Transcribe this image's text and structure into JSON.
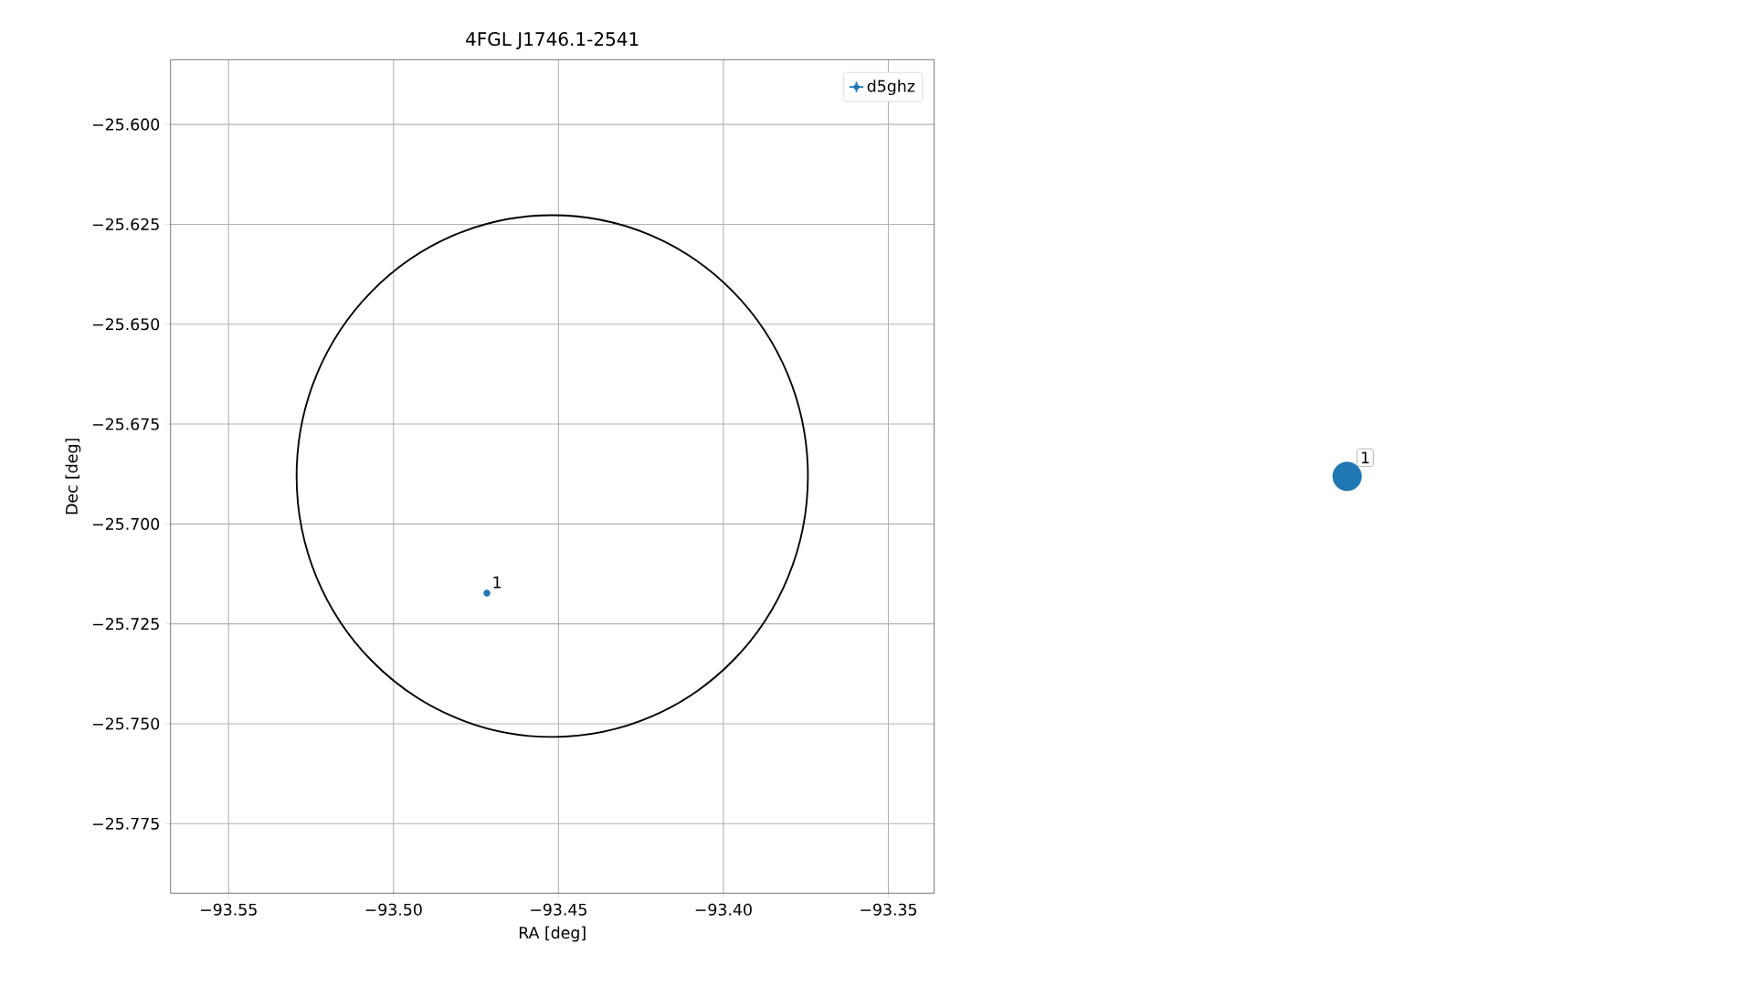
{
  "chart_data": [
    {
      "type": "scatter",
      "title": "4FGL J1746.1-2541",
      "xlabel": "RA [deg]",
      "ylabel": "Dec [deg]",
      "xlim": [
        -93.5676,
        -93.3361
      ],
      "ylim": [
        -25.7924,
        -25.5838
      ],
      "xticks": [
        {
          "value": -93.55,
          "label": "−93.55"
        },
        {
          "value": -93.5,
          "label": "−93.50"
        },
        {
          "value": -93.45,
          "label": "−93.45"
        },
        {
          "value": -93.4,
          "label": "−93.40"
        },
        {
          "value": -93.35,
          "label": "−93.35"
        }
      ],
      "yticks": [
        {
          "value": -25.775,
          "label": "−25.775"
        },
        {
          "value": -25.75,
          "label": "−25.750"
        },
        {
          "value": -25.725,
          "label": "−25.725"
        },
        {
          "value": -25.7,
          "label": "−25.700"
        },
        {
          "value": -25.675,
          "label": "−25.675"
        },
        {
          "value": -25.65,
          "label": "−25.650"
        },
        {
          "value": -25.625,
          "label": "−25.625"
        },
        {
          "value": -25.6,
          "label": "−25.600"
        }
      ],
      "grid": true,
      "legend": "top right",
      "series": [
        {
          "type": "scatter",
          "name": "d5ghz",
          "color": "#1f77b4",
          "marker": "circle",
          "x": [
            -93.4717
          ],
          "values": [
            -25.7173
          ]
        }
      ],
      "annotations": [
        {
          "text": "1",
          "x": -93.4717,
          "y": -25.7173
        }
      ]
    },
    {
      "type": "other",
      "annotations": [
        "1"
      ]
    }
  ]
}
